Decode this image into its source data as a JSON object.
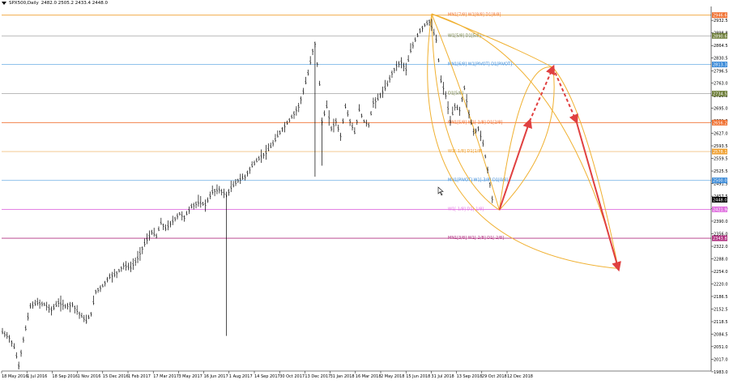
{
  "header": {
    "symbol": "SPX500,Daily",
    "ohlc": "2482.0 2505.2 2433.4 2448.0"
  },
  "chart_data": {
    "type": "candlestick",
    "title": "SPX500,Daily",
    "ylim": [
      1985,
      2970
    ],
    "grid": false,
    "date_labels": [
      "18 May 2016",
      "1 Jul 2016",
      "18 Sep 2016",
      "1 Nov 2016",
      "15 Dec 2016",
      "1 Feb 2017",
      "17 Mar 2017",
      "3 May 2017",
      "16 Jun 2017",
      "1 Aug 2017",
      "14 Sep 2017",
      "30 Oct 2017",
      "13 Dec 2017",
      "31 Jan 2018",
      "16 Mar 2018",
      "2 May 2018",
      "15 Jun 2018",
      "31 Jul 2018",
      "13 Sep 2018",
      "29 Oct 2018",
      "12 Dec 2018"
    ],
    "price_ticks": [
      2932.5,
      2898.8,
      2864.5,
      2830.5,
      2796.5,
      2763.0,
      2729.5,
      2695.0,
      2661.0,
      2627.0,
      2593.5,
      2559.5,
      2525.5,
      2491.5,
      2457.5,
      2424.0,
      2390.0,
      2356.0,
      2322.0,
      2288.0,
      2254.0,
      2220.0,
      2186.5,
      2152.5,
      2118.5,
      2084.5,
      2051.0,
      2017.0,
      1983.0
    ],
    "price_path": [
      [
        0,
        2090
      ],
      [
        3,
        2075
      ],
      [
        5,
        2050
      ],
      [
        7,
        2000
      ],
      [
        9,
        2070
      ],
      [
        12,
        2160
      ],
      [
        15,
        2170
      ],
      [
        18,
        2165
      ],
      [
        21,
        2150
      ],
      [
        24,
        2170
      ],
      [
        27,
        2160
      ],
      [
        30,
        2165
      ],
      [
        33,
        2140
      ],
      [
        36,
        2120
      ],
      [
        38,
        2140
      ],
      [
        40,
        2200
      ],
      [
        43,
        2215
      ],
      [
        46,
        2240
      ],
      [
        49,
        2250
      ],
      [
        52,
        2270
      ],
      [
        55,
        2265
      ],
      [
        58,
        2290
      ],
      [
        61,
        2330
      ],
      [
        64,
        2360
      ],
      [
        66,
        2350
      ],
      [
        68,
        2385
      ],
      [
        70,
        2370
      ],
      [
        73,
        2390
      ],
      [
        76,
        2410
      ],
      [
        78,
        2400
      ],
      [
        81,
        2430
      ],
      [
        84,
        2440
      ],
      [
        87,
        2435
      ],
      [
        90,
        2470
      ],
      [
        93,
        2475
      ],
      [
        96,
        2460
      ],
      [
        98,
        2480
      ],
      [
        101,
        2500
      ],
      [
        104,
        2510
      ],
      [
        107,
        2540
      ],
      [
        110,
        2560
      ],
      [
        113,
        2575
      ],
      [
        116,
        2600
      ],
      [
        119,
        2630
      ],
      [
        122,
        2655
      ],
      [
        125,
        2680
      ],
      [
        127,
        2700
      ],
      [
        129,
        2740
      ],
      [
        131,
        2790
      ],
      [
        133,
        2850
      ],
      [
        134,
        2870
      ],
      [
        136,
        2760
      ],
      [
        137,
        2660
      ],
      [
        139,
        2700
      ],
      [
        141,
        2640
      ],
      [
        143,
        2660
      ],
      [
        145,
        2620
      ],
      [
        147,
        2700
      ],
      [
        149,
        2660
      ],
      [
        151,
        2630
      ],
      [
        153,
        2690
      ],
      [
        155,
        2660
      ],
      [
        157,
        2650
      ],
      [
        159,
        2710
      ],
      [
        161,
        2720
      ],
      [
        163,
        2740
      ],
      [
        165,
        2760
      ],
      [
        167,
        2790
      ],
      [
        169,
        2810
      ],
      [
        171,
        2820
      ],
      [
        173,
        2800
      ],
      [
        175,
        2850
      ],
      [
        177,
        2880
      ],
      [
        179,
        2905
      ],
      [
        181,
        2920
      ],
      [
        183,
        2930
      ],
      [
        184,
        2915
      ],
      [
        186,
        2880
      ],
      [
        188,
        2770
      ],
      [
        190,
        2730
      ],
      [
        192,
        2660
      ],
      [
        194,
        2700
      ],
      [
        196,
        2690
      ],
      [
        198,
        2750
      ],
      [
        200,
        2680
      ],
      [
        202,
        2630
      ],
      [
        204,
        2640
      ],
      [
        206,
        2600
      ],
      [
        208,
        2530
      ],
      [
        210,
        2450
      ],
      [
        211,
        2448
      ]
    ],
    "levels": [
      {
        "price": 2946.6,
        "label": "MN1[7/8] W1[8/8] D1[8/8]",
        "color": "#f0a030",
        "tag_color": "#f07030",
        "tag": "2946.6"
      },
      {
        "price": 2890.6,
        "label": "W1[5/8] D1[5/8]",
        "color": "#b0b0b0",
        "tag_color": "#6e7e3a",
        "tag": "2890.6"
      },
      {
        "price": 2813.3,
        "label": "MN1[6/8] W1[PIVOT] D1[PIVOT]",
        "color": "#80b8e8",
        "tag_color": "#3a8ad8",
        "tag": "2813.3"
      },
      {
        "price": 2734.5,
        "label": "D1[5/8]",
        "color": "#b0b0b0",
        "tag_color": "#6e7e3a",
        "tag": "2734.5"
      },
      {
        "price": 2656.2,
        "label": "MN1[5/8] W1[-1/8] D1[2/8]",
        "color": "#f07030",
        "tag_color": "#f07030",
        "tag": "2656.2"
      },
      {
        "price": 2578.1,
        "label": "W1[-1/8] D1[1/8]",
        "color": "#f0c080",
        "tag_color": "#f0a030",
        "tag": "2578.1"
      },
      {
        "price": 2500.0,
        "label": "MN1[PIVOT] W1[-3/8] D1[0/8]",
        "color": "#80b8e8",
        "tag_color": "#3a8ad8",
        "tag": "2500.0"
      },
      {
        "price": 2421.9,
        "label": "W1[-1/8] D1[-1/8]",
        "color": "#e070e0",
        "tag_color": "#e070e0",
        "tag": "2421.9"
      },
      {
        "price": 2343.8,
        "label": "MN1[3/8] W1[-2/8] D1[-2/8]",
        "color": "#b03080",
        "tag_color": "#b03080",
        "tag": "2343.8"
      }
    ],
    "current_price": {
      "price": 2448.0,
      "tag": "2448.0"
    },
    "arrows": [
      {
        "from": [
          213,
          2420
        ],
        "to": [
          226,
          2660
        ],
        "style": "solid"
      },
      {
        "from": [
          226,
          2660
        ],
        "to": [
          236,
          2805
        ],
        "style": "dashed"
      },
      {
        "from": [
          236,
          2805
        ],
        "to": [
          246,
          2660
        ],
        "style": "dashed"
      },
      {
        "from": [
          246,
          2660
        ],
        "to": [
          264,
          2262
        ],
        "style": "solid"
      }
    ],
    "arcs_color": "#f0b030"
  }
}
